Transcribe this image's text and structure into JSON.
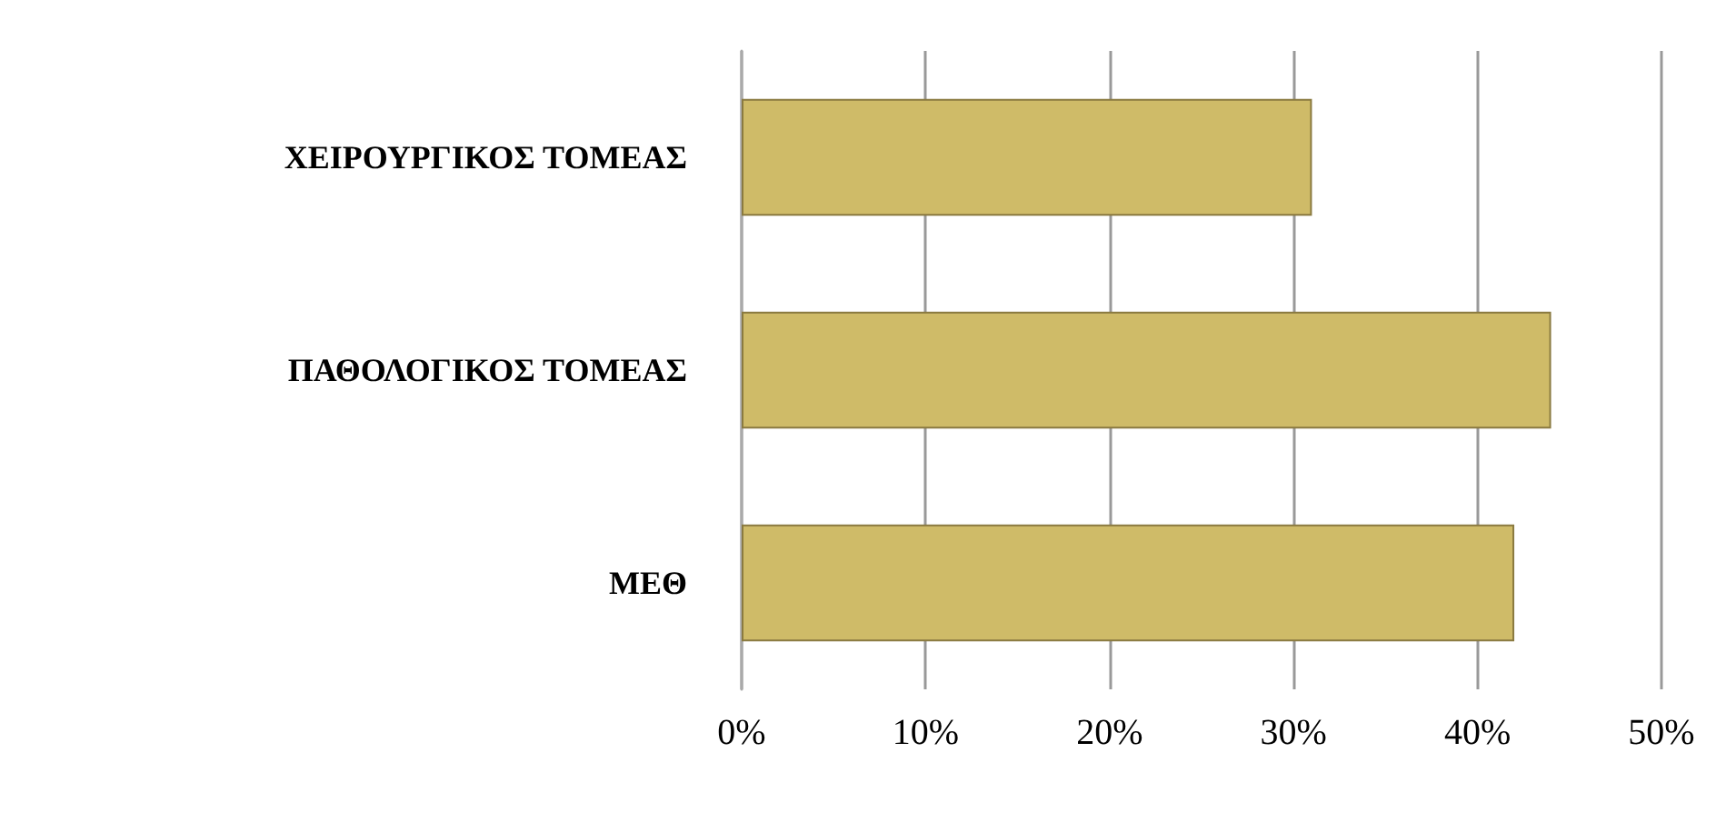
{
  "chart_data": {
    "type": "bar",
    "orientation": "horizontal",
    "categories": [
      "ΧΕΙΡΟΥΡΓΙΚΟΣ ΤΟΜΕΑΣ",
      "ΠΑΘΟΛΟΓΙΚΟΣ ΤΟΜΕΑΣ",
      "ΜΕΘ"
    ],
    "values": [
      31,
      44,
      42
    ],
    "color": "#cfbb68",
    "xlim": [
      0,
      50
    ],
    "xticks": [
      {
        "value": 0,
        "label": "0%"
      },
      {
        "value": 10,
        "label": "10%"
      },
      {
        "value": 20,
        "label": "20%"
      },
      {
        "value": 30,
        "label": "30%"
      },
      {
        "value": 40,
        "label": "40%"
      },
      {
        "value": 50,
        "label": "50%"
      }
    ],
    "grid": "x"
  }
}
